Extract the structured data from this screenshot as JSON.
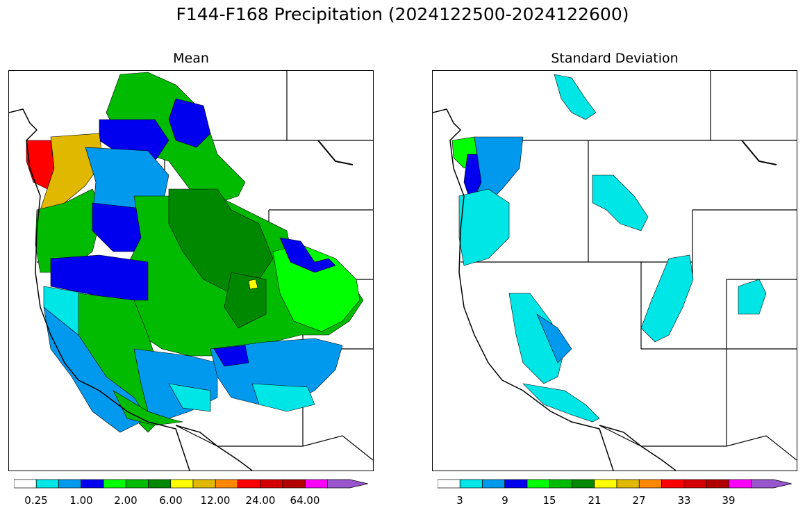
{
  "title": "F144-F168 Precipitation (2024122500-2024122600)",
  "panels": [
    {
      "title": "Mean",
      "colorbar": {
        "colors": [
          "#ffffff",
          "#00e5e5",
          "#0099ee",
          "#0000ee",
          "#00ff00",
          "#00bb00",
          "#008800",
          "#ffff00",
          "#e0b800",
          "#ff8800",
          "#ff0000",
          "#d40000",
          "#b20000",
          "#ff00ff",
          "#9955cc"
        ],
        "tick_labels": [
          "0.25",
          "1.00",
          "2.00",
          "6.00",
          "12.00",
          "24.00",
          "64.00"
        ],
        "extend": "max"
      }
    },
    {
      "title": "Standard Deviation",
      "colorbar": {
        "colors": [
          "#ffffff",
          "#00e5e5",
          "#0099ee",
          "#0000ee",
          "#00ff00",
          "#00bb00",
          "#008800",
          "#ffff00",
          "#e0b800",
          "#ff8800",
          "#ff0000",
          "#d40000",
          "#b20000",
          "#ff00ff",
          "#9955cc"
        ],
        "tick_labels": [
          "3",
          "9",
          "15",
          "21",
          "27",
          "33",
          "39"
        ],
        "extend": "max"
      }
    }
  ]
}
